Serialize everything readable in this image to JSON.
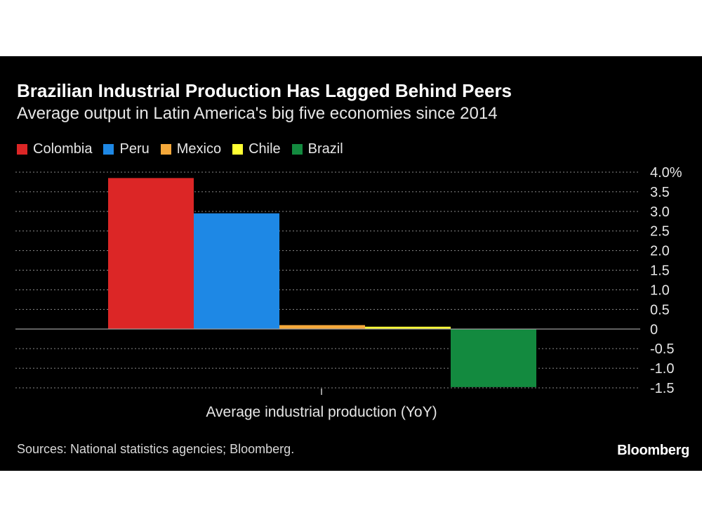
{
  "chart_data": {
    "type": "bar",
    "title": "Brazilian Industrial Production Has Lagged Behind Peers",
    "subtitle": "Average output in Latin America's big five economies since 2014",
    "xlabel": "Average industrial production (YoY)",
    "ylim": [
      -1.5,
      4.0
    ],
    "yticks": [
      "4.0%",
      "3.5",
      "3.0",
      "2.5",
      "2.0",
      "1.5",
      "1.0",
      "0.5",
      "0",
      "-0.5",
      "-1.0",
      "-1.5"
    ],
    "grid": true,
    "legend_position": "top-left",
    "series": [
      {
        "name": "Colombia",
        "value": 3.85,
        "color": "#dc2626"
      },
      {
        "name": "Peru",
        "value": 2.95,
        "color": "#1e88e5"
      },
      {
        "name": "Mexico",
        "value": 0.1,
        "color": "#f4a83a"
      },
      {
        "name": "Chile",
        "value": 0.06,
        "color": "#ffff33"
      },
      {
        "name": "Brazil",
        "value": -1.48,
        "color": "#138a3f"
      }
    ]
  },
  "footer": {
    "source": "Sources: National statistics agencies; Bloomberg.",
    "brand": "Bloomberg"
  }
}
